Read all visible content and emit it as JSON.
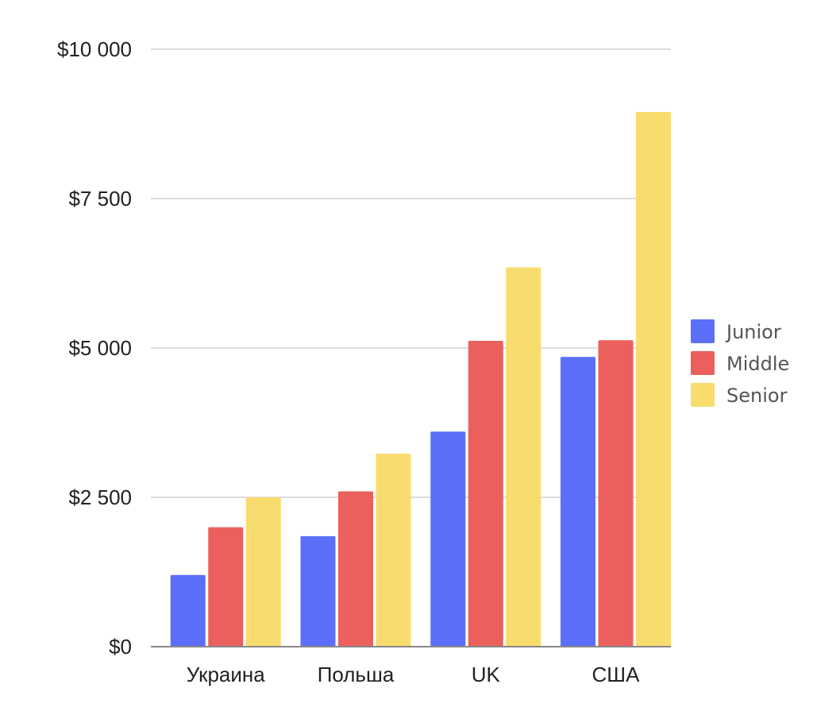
{
  "chart_data": {
    "type": "bar",
    "title": "",
    "xlabel": "",
    "ylabel": "",
    "categories": [
      "Украина",
      "Польша",
      "UK",
      "США"
    ],
    "series": [
      {
        "name": "Junior",
        "color": "#5b6ff8",
        "values": [
          1200,
          1850,
          3600,
          4850
        ]
      },
      {
        "name": "Middle",
        "color": "#eb605c",
        "values": [
          2000,
          2600,
          5120,
          5130
        ]
      },
      {
        "name": "Senior",
        "color": "#f9dc6e",
        "values": [
          2500,
          3230,
          6350,
          8950
        ]
      }
    ],
    "ylim": [
      0,
      10000
    ],
    "yticks": [
      0,
      2500,
      5000,
      7500,
      10000
    ],
    "ytick_labels": [
      "$0",
      "$2 500",
      "$5 000",
      "$7 500",
      "$10 000"
    ],
    "grid": true,
    "legend_position": "right"
  }
}
